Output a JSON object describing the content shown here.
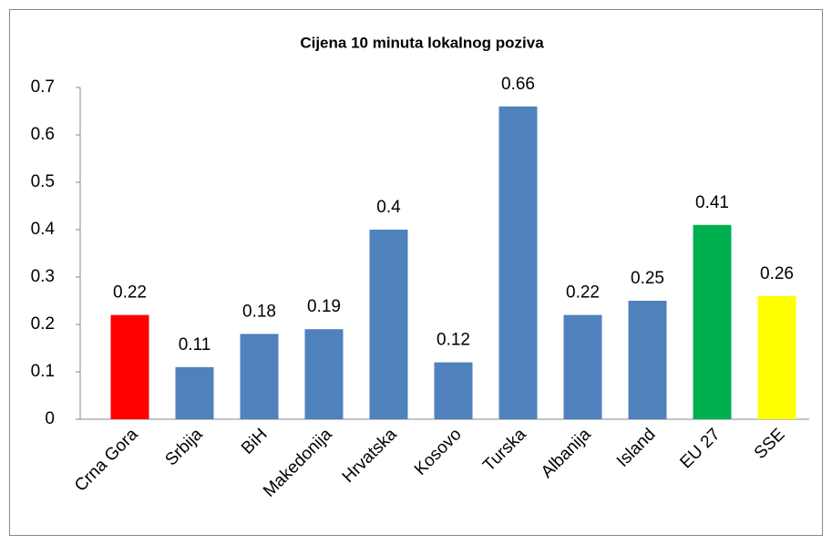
{
  "chart_data": {
    "type": "bar",
    "title": "Cijena 10 minuta lokalnog poziva",
    "categories": [
      "Crna Gora",
      "Srbija",
      "BiH",
      "Makedonija",
      "Hrvatska",
      "Kosovo",
      "Turska",
      "Albanija",
      "Island",
      "EU 27",
      "SSE"
    ],
    "values": [
      0.22,
      0.11,
      0.18,
      0.19,
      0.4,
      0.12,
      0.66,
      0.22,
      0.25,
      0.41,
      0.26
    ],
    "colors": [
      "#ff0000",
      "#4f81bd",
      "#4f81bd",
      "#4f81bd",
      "#4f81bd",
      "#4f81bd",
      "#4f81bd",
      "#4f81bd",
      "#4f81bd",
      "#00b050",
      "#ffff00"
    ],
    "ylim": [
      0,
      0.7
    ],
    "yticks": [
      0,
      0.1,
      0.2,
      0.3,
      0.4,
      0.5,
      0.6,
      0.7
    ],
    "grid": false
  }
}
